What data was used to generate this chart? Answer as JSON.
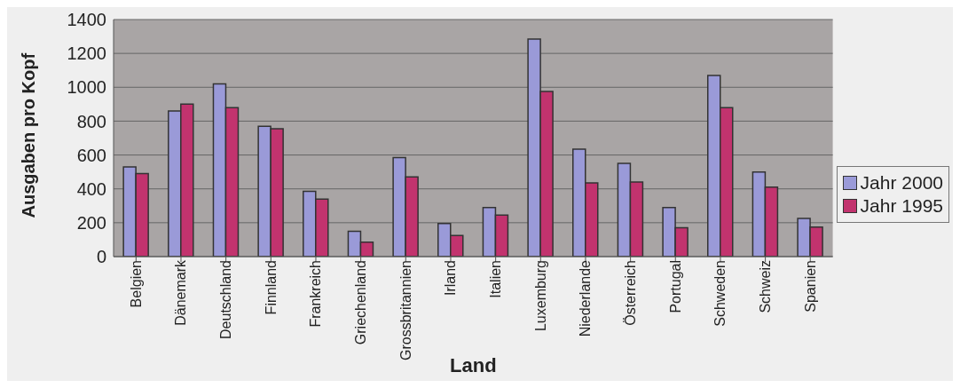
{
  "chart_data": {
    "type": "bar",
    "xlabel": "Land",
    "ylabel": "Ausgaben pro Kopf",
    "categories": [
      "Belgien",
      "Dänemark",
      "Deutschland",
      "Finnland",
      "Frankreich",
      "Griechenland",
      "Grossbritannien",
      "Irland",
      "Italien",
      "Luxemburg",
      "Niederlande",
      "Österreich",
      "Portugal",
      "Schweden",
      "Schweiz",
      "Spanien"
    ],
    "series": [
      {
        "name": "Jahr 2000",
        "color": "#9a9ad8",
        "values": [
          530,
          860,
          1020,
          770,
          385,
          150,
          585,
          195,
          290,
          1285,
          635,
          550,
          290,
          1070,
          500,
          225
        ]
      },
      {
        "name": "Jahr 1995",
        "color": "#c2336e",
        "values": [
          490,
          900,
          880,
          755,
          340,
          85,
          470,
          125,
          245,
          975,
          435,
          440,
          170,
          880,
          410,
          175
        ]
      }
    ],
    "ylim": [
      0,
      1400
    ],
    "yticks": [
      0,
      200,
      400,
      600,
      800,
      1000,
      1200,
      1400
    ],
    "grid": "y",
    "legend": "right"
  }
}
